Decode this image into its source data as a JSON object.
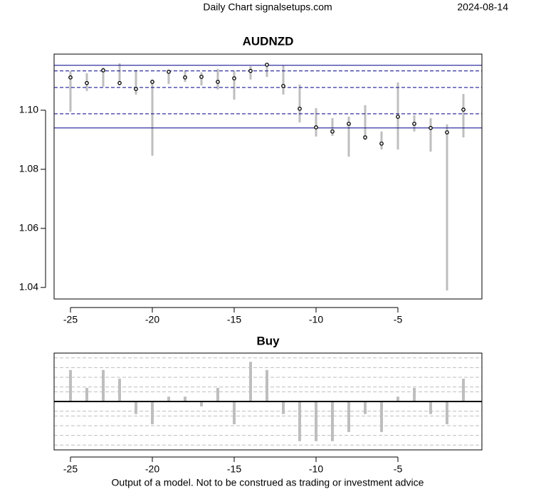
{
  "header": "Daily Chart signalsetups.com",
  "date": "2024-08-14",
  "footer": "Output of a model. Not to be construed as trading or investment advice",
  "chart_data": [
    {
      "type": "range",
      "title": "AUDNZD",
      "x": [
        -25,
        -24,
        -23,
        -22,
        -21,
        -20,
        -19,
        -18,
        -17,
        -16,
        -15,
        -14,
        -13,
        -12,
        -11,
        -10,
        -9,
        -8,
        -7,
        -6,
        -5,
        -4,
        -3,
        -2,
        -1
      ],
      "high": [
        1.1133,
        1.1125,
        1.1145,
        1.1159,
        1.1137,
        1.1104,
        1.1137,
        1.1135,
        1.1128,
        1.114,
        1.1133,
        1.1149,
        1.1159,
        1.1152,
        1.1087,
        1.1007,
        1.0973,
        1.0978,
        1.1017,
        1.0928,
        1.1094,
        1.0983,
        1.0973,
        1.0952,
        1.1055
      ],
      "low": [
        1.0995,
        1.1065,
        1.108,
        1.1084,
        1.1053,
        1.0846,
        1.1089,
        1.1096,
        1.1084,
        1.107,
        1.1036,
        1.1104,
        1.1113,
        1.1053,
        1.0959,
        1.0911,
        1.0913,
        1.0843,
        1.0899,
        1.0867,
        1.0867,
        1.0928,
        1.086,
        1.039,
        1.0908
      ],
      "close": [
        1.1111,
        1.1092,
        1.1135,
        1.1092,
        1.1072,
        1.1096,
        1.113,
        1.1111,
        1.1113,
        1.1096,
        1.1108,
        1.1133,
        1.1154,
        1.1082,
        1.1005,
        1.0942,
        1.0928,
        1.0954,
        1.0908,
        1.0887,
        1.0978,
        1.0954,
        1.094,
        1.0925,
        1.1002
      ],
      "range_color": "#bebebe",
      "close_color": "#000000",
      "levels": [
        {
          "value": 1.1152,
          "style": "solid"
        },
        {
          "value": 1.1133,
          "style": "dashed"
        },
        {
          "value": 1.1077,
          "style": "dashed"
        },
        {
          "value": 1.0988,
          "style": "dashed"
        },
        {
          "value": 1.094,
          "style": "solid"
        }
      ],
      "level_color": "#00008b",
      "xlim": [
        -26,
        0.13
      ],
      "ylim": [
        1.0361,
        1.119
      ],
      "xticks": [
        -25,
        -20,
        -15,
        -10,
        -5
      ],
      "yticks": [
        1.04,
        1.06,
        1.08,
        {
          "value": 1.1,
          "label": "1.10"
        }
      ]
    },
    {
      "type": "bar",
      "title": "Buy",
      "x": [
        -25,
        -24,
        -23,
        -22,
        -21,
        -20,
        -19,
        -18,
        -17,
        -16,
        -15,
        -14,
        -13,
        -12,
        -11,
        -10,
        -9,
        -8,
        -7,
        -6,
        -5,
        -4,
        -3,
        -2,
        -1
      ],
      "values": [
        0.65,
        0.28,
        0.65,
        0.47,
        -0.26,
        -0.47,
        0.1,
        0.1,
        -0.1,
        0.28,
        -0.47,
        0.82,
        0.65,
        -0.26,
        -0.82,
        -0.82,
        -0.82,
        -0.63,
        -0.26,
        -0.63,
        0.1,
        0.28,
        -0.26,
        -0.47,
        0.47
      ],
      "color": "#bebebe",
      "grid_lines": [
        -0.9,
        -0.7,
        -0.5,
        -0.3,
        -0.2,
        0.2,
        0.3,
        0.5,
        0.7,
        0.9
      ],
      "xlim": [
        -26,
        0.13
      ],
      "ylim": [
        -1,
        1
      ]
    }
  ]
}
